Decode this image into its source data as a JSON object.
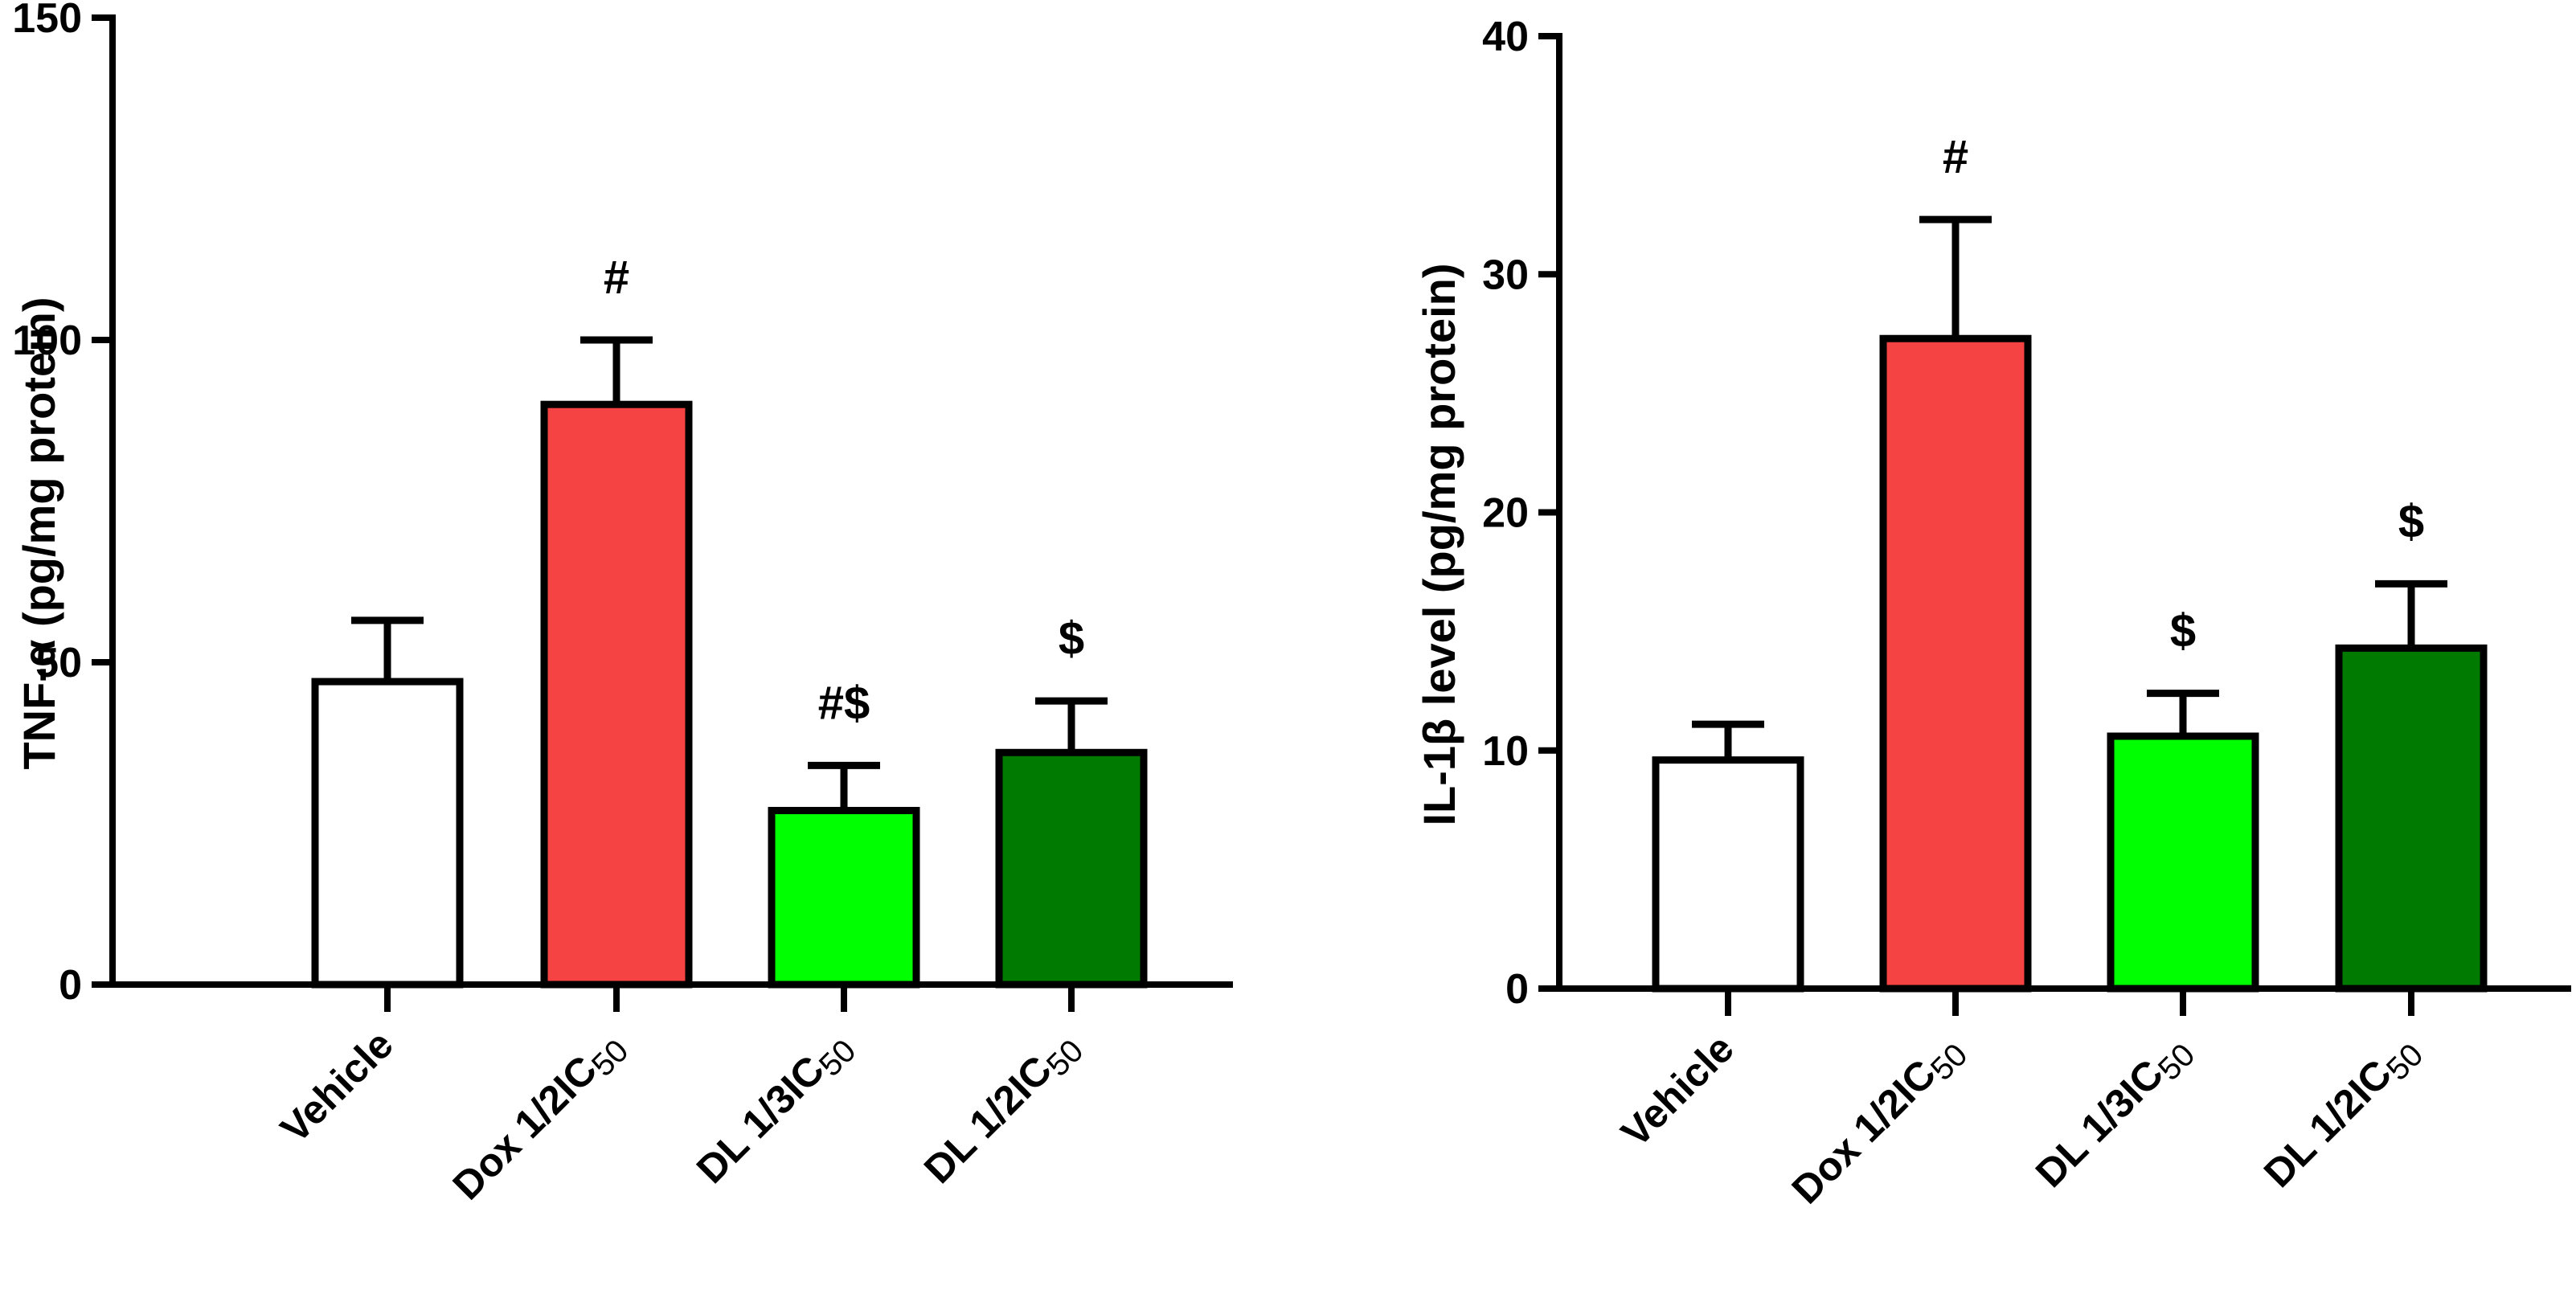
{
  "chart_data": [
    {
      "type": "bar",
      "ylabel": "TNF-α (pg/mg protein)",
      "ylim": [
        0,
        150
      ],
      "yticks": [
        "0",
        "50",
        "100",
        "150"
      ],
      "categories": [
        {
          "main": "Vehicle",
          "sub": ""
        },
        {
          "main": "Dox 1/2IC",
          "sub": "50"
        },
        {
          "main": "DL 1/3IC",
          "sub": "50"
        },
        {
          "main": "DL 1/2IC",
          "sub": "50"
        }
      ],
      "values": [
        47,
        90,
        27,
        36
      ],
      "errors": [
        9.5,
        10,
        7,
        8
      ],
      "colors": [
        "#ffffff",
        "#f54242",
        "#00ff00",
        "#007a00"
      ],
      "significance": [
        "",
        "#",
        "#$",
        "$"
      ]
    },
    {
      "type": "bar",
      "ylabel": "IL-1β level (pg/mg protein)",
      "ylim": [
        0,
        40
      ],
      "yticks": [
        "0",
        "10",
        "20",
        "30",
        "40"
      ],
      "categories": [
        {
          "main": "Vehicle",
          "sub": ""
        },
        {
          "main": "Dox 1/2IC",
          "sub": "50"
        },
        {
          "main": "DL 1/3IC",
          "sub": "50"
        },
        {
          "main": "DL 1/2IC",
          "sub": "50"
        }
      ],
      "values": [
        9.6,
        27.3,
        10.6,
        14.3
      ],
      "errors": [
        1.5,
        5,
        1.8,
        2.7
      ],
      "colors": [
        "#ffffff",
        "#f54242",
        "#00ff00",
        "#007a00"
      ],
      "significance": [
        "",
        "#",
        "$",
        "$"
      ]
    }
  ]
}
